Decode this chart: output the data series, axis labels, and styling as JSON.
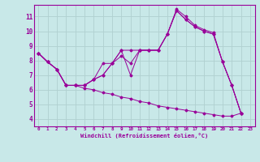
{
  "xlabel": "Windchill (Refroidissement éolien,°C)",
  "background_color": "#c8e8e8",
  "line_color": "#990099",
  "grid_color": "#b0d0d0",
  "xlim": [
    -0.5,
    23.5
  ],
  "ylim": [
    3.5,
    11.8
  ],
  "xticks": [
    0,
    1,
    2,
    3,
    4,
    5,
    6,
    7,
    8,
    9,
    10,
    11,
    12,
    13,
    14,
    15,
    16,
    17,
    18,
    19,
    20,
    21,
    22,
    23
  ],
  "yticks": [
    4,
    5,
    6,
    7,
    8,
    9,
    10,
    11
  ],
  "s1": [
    8.5,
    7.9,
    7.4,
    6.3,
    6.3,
    6.3,
    6.7,
    7.8,
    7.8,
    8.7,
    7.0,
    8.7,
    8.7,
    8.7,
    9.8,
    11.4,
    10.8,
    10.3,
    10.0,
    9.8,
    7.9,
    6.3,
    4.4
  ],
  "s2": [
    8.5,
    7.9,
    7.4,
    6.3,
    6.3,
    6.3,
    6.7,
    7.0,
    7.8,
    8.3,
    7.8,
    8.7,
    8.7,
    8.7,
    9.8,
    11.4,
    10.8,
    10.3,
    10.0,
    9.8,
    7.9,
    6.3,
    4.4
  ],
  "s3": [
    8.5,
    7.9,
    7.4,
    6.3,
    6.3,
    6.3,
    6.7,
    7.0,
    7.8,
    8.7,
    8.7,
    8.7,
    8.7,
    8.7,
    9.8,
    11.5,
    11.0,
    10.4,
    10.1,
    9.9,
    7.9,
    6.3,
    4.4
  ],
  "s4": [
    8.5,
    7.9,
    7.4,
    6.3,
    6.3,
    6.1,
    6.0,
    5.8,
    5.7,
    5.5,
    5.4,
    5.2,
    5.1,
    4.9,
    4.8,
    4.7,
    4.6,
    4.5,
    4.4,
    4.3,
    4.2,
    4.2,
    4.4
  ]
}
